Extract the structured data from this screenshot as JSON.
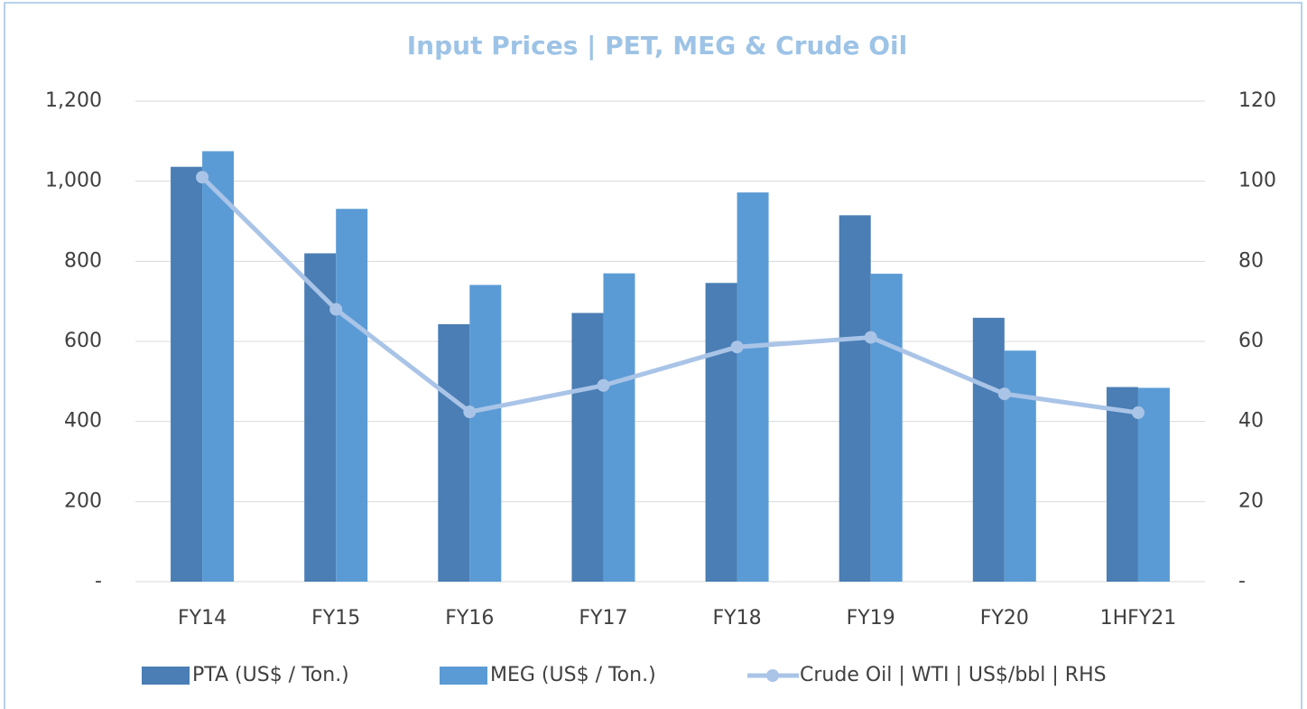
{
  "chart_data": {
    "type": "bar_line",
    "title": "Input Prices | PET, MEG & Crude Oil",
    "categories": [
      "FY14",
      "FY15",
      "FY16",
      "FY17",
      "FY18",
      "FY19",
      "FY20",
      "1HFY21"
    ],
    "series": [
      {
        "name": "PTA (US$ / Ton.)",
        "type": "bar",
        "color": "#4a7eb4",
        "values": [
          1036,
          820,
          643,
          671,
          746,
          915,
          659,
          486
        ]
      },
      {
        "name": "MEG (US$ / Ton.)",
        "type": "bar",
        "color": "#5b9bd5",
        "values": [
          1075,
          931,
          741,
          770,
          972,
          769,
          577,
          484
        ]
      },
      {
        "name": "Crude Oil | WTI |  US$/bbl | RHS",
        "type": "line",
        "axis": "y2",
        "color": "#a9c4e7",
        "values": [
          101,
          68,
          42.4,
          49,
          58.6,
          61,
          46.9,
          42.2
        ]
      }
    ],
    "ylim": [
      0,
      1200
    ],
    "yticks": [
      {
        "value": 0,
        "label": "-"
      },
      200,
      400,
      600,
      800,
      {
        "value": 1000,
        "label": "1,000"
      },
      {
        "value": 1200,
        "label": "1,200"
      }
    ],
    "y2lim": [
      0,
      120
    ],
    "y2ticks": [
      {
        "value": 0,
        "label": "-"
      },
      20,
      40,
      60,
      80,
      100,
      120
    ],
    "grid": true,
    "legend": "bottom"
  }
}
